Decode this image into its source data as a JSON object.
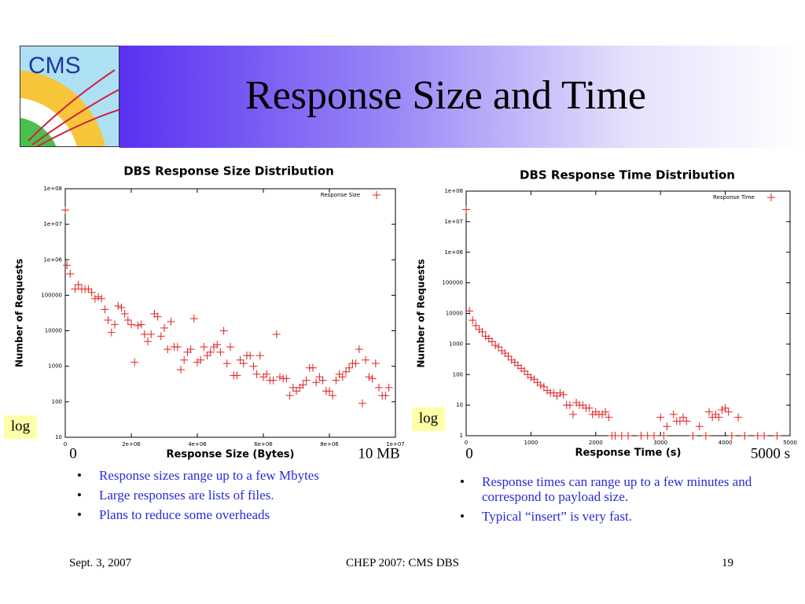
{
  "title": "Response Size and Time",
  "logo": "CMS",
  "bullets_left": [
    "Response sizes range up to a few Mbytes",
    "Large responses are lists of files.",
    "Plans to reduce some overheads"
  ],
  "bullets_right": [
    "Response times can range up to a few minutes and correspond to payload size.",
    "Typical “insert” is very fast."
  ],
  "footer": {
    "date": "Sept. 3, 2007",
    "center": "CHEP 2007: CMS DBS",
    "page": "19"
  },
  "chart_data": [
    {
      "type": "scatter",
      "title": "DBS Response Size Distribution",
      "x_label": "Response Size (Bytes)",
      "y_label": "Number of Requests",
      "annotations": [
        "log",
        "0",
        "10 MB"
      ],
      "legend": "top-right",
      "grid": false,
      "ylog": true,
      "xlim": [
        0,
        10000000
      ],
      "xticks": [
        0,
        {
          "value": 2000000,
          "label": "2e+06"
        },
        {
          "value": 4000000,
          "label": "4e+06"
        },
        {
          "value": 6000000,
          "label": "6e+06"
        },
        {
          "value": 8000000,
          "label": "8e+06"
        },
        {
          "value": 10000000,
          "label": "1e+07"
        }
      ],
      "ylim": [
        10,
        100000000
      ],
      "yticks": [
        10,
        100,
        1000,
        10000,
        100000,
        {
          "value": 1000000,
          "label": "1e+06"
        },
        {
          "value": 10000000,
          "label": "1e+07"
        },
        {
          "value": 100000000,
          "label": "1e+08"
        }
      ],
      "x": [
        0,
        50000,
        150000,
        300000,
        400000,
        500000,
        600000,
        700000,
        800000,
        900000,
        1000000,
        1100000,
        1200000,
        1300000,
        1400000,
        1500000,
        1600000,
        1700000,
        1800000,
        1900000,
        2000000,
        2100000,
        2200000,
        2300000,
        2400000,
        2500000,
        2600000,
        2700000,
        2800000,
        2900000,
        3000000,
        3100000,
        3200000,
        3300000,
        3400000,
        3500000,
        3600000,
        3700000,
        3800000,
        3900000,
        4000000,
        4100000,
        4200000,
        4300000,
        4400000,
        4500000,
        4600000,
        4700000,
        4800000,
        4900000,
        5000000,
        5100000,
        5200000,
        5300000,
        5400000,
        5500000,
        5600000,
        5700000,
        5800000,
        5900000,
        6000000,
        6100000,
        6200000,
        6300000,
        6400000,
        6500000,
        6600000,
        6700000,
        6800000,
        6900000,
        7000000,
        7100000,
        7200000,
        7300000,
        7400000,
        7500000,
        7600000,
        7700000,
        7800000,
        7900000,
        8000000,
        8100000,
        8200000,
        8300000,
        8400000,
        8500000,
        8600000,
        8700000,
        8800000,
        8900000,
        9000000,
        9100000,
        9200000,
        9300000,
        9400000,
        9500000,
        9600000,
        9700000,
        9800000
      ],
      "series": [
        {
          "name": "Response Size",
          "color": "#e02020",
          "values": [
            25000000,
            700000,
            400000,
            150000,
            200000,
            150000,
            150000,
            150000,
            120000,
            80000,
            90000,
            80000,
            40000,
            20000,
            9000,
            15000,
            50000,
            45000,
            30000,
            20000,
            15000,
            1300,
            14000,
            15000,
            8000,
            5000,
            8000,
            30000,
            25000,
            7000,
            12000,
            3000,
            18000,
            3500,
            3500,
            800,
            1500,
            2500,
            3000,
            22000,
            1300,
            1500,
            3500,
            2000,
            2500,
            3500,
            4000,
            2500,
            10000,
            1200,
            3500,
            550,
            550,
            1500,
            1200,
            2000,
            2000,
            1000,
            600,
            2000,
            500,
            600,
            400,
            400,
            8000,
            500,
            450,
            450,
            150,
            250,
            200,
            250,
            300,
            400,
            900,
            900,
            350,
            500,
            400,
            200,
            200,
            150,
            400,
            600,
            500,
            700,
            900,
            1200,
            1200,
            3000,
            90,
            1500,
            500,
            450,
            1200,
            250,
            150,
            150,
            250
          ]
        }
      ]
    },
    {
      "type": "scatter",
      "title": "DBS Response Time Distribution",
      "x_label": "Response Time (s)",
      "y_label": "Number of Requests",
      "annotations": [
        "log",
        "0",
        "5000 s"
      ],
      "legend": "top-right",
      "grid": false,
      "ylog": true,
      "xlim": [
        0,
        5000
      ],
      "xticks": [
        0,
        1000,
        2000,
        3000,
        4000,
        5000
      ],
      "ylim": [
        1,
        100000000
      ],
      "yticks": [
        1,
        10,
        100,
        1000,
        10000,
        100000,
        {
          "value": 1000000,
          "label": "1e+06"
        },
        {
          "value": 10000000,
          "label": "1e+07"
        },
        {
          "value": 100000000,
          "label": "1e+08"
        }
      ],
      "x": [
        0,
        50,
        100,
        150,
        200,
        250,
        300,
        350,
        400,
        450,
        500,
        550,
        600,
        650,
        700,
        750,
        800,
        850,
        900,
        950,
        1000,
        1050,
        1100,
        1150,
        1200,
        1250,
        1300,
        1350,
        1400,
        1450,
        1500,
        1550,
        1600,
        1650,
        1700,
        1750,
        1800,
        1850,
        1900,
        1950,
        2000,
        2050,
        2100,
        2150,
        2200,
        2250,
        2300,
        2400,
        2500,
        2700,
        2800,
        2900,
        3000,
        3050,
        3100,
        3200,
        3250,
        3300,
        3350,
        3400,
        3500,
        3600,
        3700,
        3750,
        3800,
        3850,
        3900,
        3950,
        4000,
        4050,
        4100,
        4200,
        4300,
        4500,
        4600,
        4800
      ],
      "series": [
        {
          "name": "Response Time",
          "color": "#e02020",
          "values": [
            25000000,
            12000,
            6000,
            4000,
            3000,
            2500,
            1800,
            1500,
            1200,
            900,
            800,
            600,
            500,
            400,
            300,
            250,
            200,
            160,
            130,
            100,
            80,
            70,
            55,
            45,
            40,
            30,
            25,
            25,
            20,
            25,
            22,
            10,
            10,
            5,
            12,
            10,
            10,
            8,
            8,
            5,
            6,
            5,
            5,
            6,
            4,
            1,
            1,
            1,
            1,
            1,
            1,
            1,
            4,
            1,
            2,
            5,
            3,
            3,
            4,
            3,
            1,
            2,
            1,
            6,
            4,
            5,
            4,
            7,
            8,
            6,
            1,
            4,
            1,
            1,
            1,
            1
          ]
        }
      ]
    }
  ]
}
